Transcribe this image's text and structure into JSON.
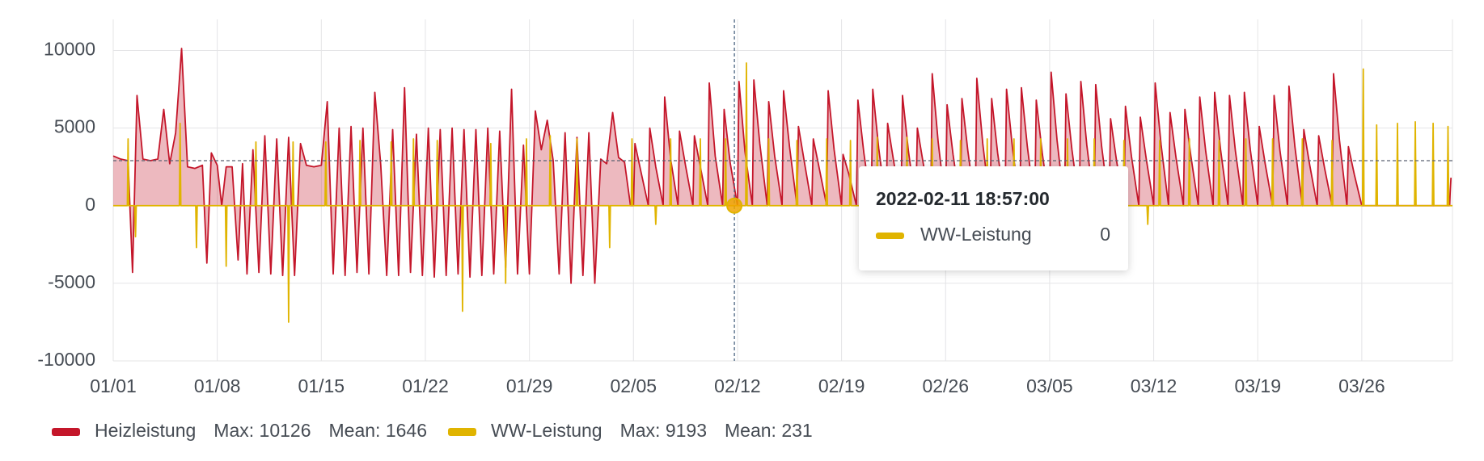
{
  "chart_data": {
    "type": "line",
    "xlim": [
      0,
      90.1
    ],
    "ylim": [
      -10000,
      12000
    ],
    "yticks": [
      -10000,
      -5000,
      0,
      5000,
      10000
    ],
    "xticks": [
      {
        "value": 0,
        "label": "01/01"
      },
      {
        "value": 7,
        "label": "01/08"
      },
      {
        "value": 14,
        "label": "01/15"
      },
      {
        "value": 21,
        "label": "01/22"
      },
      {
        "value": 28,
        "label": "01/29"
      },
      {
        "value": 35,
        "label": "02/05"
      },
      {
        "value": 42,
        "label": "02/12"
      },
      {
        "value": 49,
        "label": "02/19"
      },
      {
        "value": 56,
        "label": "02/26"
      },
      {
        "value": 63,
        "label": "03/05"
      },
      {
        "value": 70,
        "label": "03/12"
      },
      {
        "value": 77,
        "label": "03/19"
      },
      {
        "value": 84,
        "label": "03/26"
      }
    ],
    "grid": true,
    "series": [
      {
        "name": "Heizleistung",
        "color": "#c4162a",
        "fill": true,
        "legend_stats": [
          "Max: 10126",
          "Mean: 1646"
        ],
        "x": [
          0,
          0.5,
          1,
          1.3,
          1.6,
          2,
          2.5,
          3,
          3.4,
          3.8,
          4.2,
          4.6,
          5,
          5.5,
          6,
          6.3,
          6.6,
          7,
          7.3,
          7.6,
          8,
          8.4,
          8.7,
          9,
          9.4,
          9.8,
          10.2,
          10.6,
          11,
          11.4,
          11.8,
          12.2,
          12.6,
          13,
          13.5,
          14,
          14.4,
          14.8,
          15.2,
          15.6,
          16,
          16.4,
          16.8,
          17.2,
          17.6,
          18,
          18.4,
          18.8,
          19.2,
          19.6,
          20,
          20.4,
          20.8,
          21.2,
          21.6,
          22,
          22.4,
          22.8,
          23.2,
          23.6,
          24,
          24.4,
          24.8,
          25.2,
          25.6,
          26,
          26.4,
          26.8,
          27.2,
          27.6,
          28,
          28.4,
          28.8,
          29.2,
          29.6,
          30,
          30.4,
          30.8,
          31.2,
          31.6,
          32,
          32.4,
          32.8,
          33.2,
          33.6,
          34,
          34.4,
          34.8,
          35,
          35.1,
          35.5,
          36,
          36.1,
          36.5,
          37,
          37.1,
          37.5,
          38,
          38.1,
          38.5,
          39,
          39.1,
          39.5,
          40,
          40.1,
          40.5,
          41,
          41.1,
          41.5,
          42,
          42.1,
          42.5,
          43,
          43.1,
          43.5,
          44,
          44.1,
          44.5,
          45,
          45.1,
          45.5,
          46,
          46.1,
          46.5,
          47,
          47.1,
          47.5,
          48,
          48.1,
          48.5,
          49,
          49.1,
          49.5,
          50,
          50.1,
          50.5,
          51,
          51.1,
          51.5,
          52,
          52.1,
          52.5,
          53,
          53.1,
          53.5,
          54,
          54.1,
          54.5,
          55,
          55.1,
          55.5,
          56,
          56.1,
          56.5,
          57,
          57.1,
          57.5,
          58,
          58.1,
          58.5,
          59,
          59.1,
          59.5,
          60,
          60.1,
          60.5,
          61,
          61.1,
          61.5,
          62,
          62.1,
          62.5,
          63,
          63.1,
          63.5,
          64,
          64.1,
          64.5,
          65,
          65.1,
          65.5,
          66,
          66.1,
          66.5,
          67,
          67.1,
          67.5,
          68,
          68.1,
          68.5,
          69,
          69.1,
          69.5,
          70,
          70.1,
          70.5,
          71,
          71.1,
          71.5,
          72,
          72.1,
          72.5,
          73,
          73.1,
          73.5,
          74,
          74.1,
          74.5,
          75,
          75.1,
          75.5,
          76,
          76.1,
          76.5,
          77,
          77.1,
          77.5,
          78,
          78.1,
          78.5,
          79,
          79.1,
          79.5,
          80,
          80.1,
          80.5,
          81,
          81.1,
          81.5,
          82,
          82.1,
          82.5,
          83,
          83.1,
          83.5,
          84,
          89.9,
          90
        ],
        "values": [
          3200,
          3000,
          2900,
          -4300,
          7100,
          3000,
          2900,
          3000,
          6200,
          2700,
          4700,
          10126,
          2500,
          2400,
          2600,
          -3700,
          3400,
          2600,
          0,
          2500,
          2500,
          -3500,
          2700,
          -4400,
          3600,
          -4300,
          4500,
          -4400,
          4300,
          -4500,
          4400,
          -4500,
          4000,
          2600,
          2500,
          2600,
          6700,
          -4400,
          5000,
          -4500,
          5100,
          -4300,
          5000,
          -4400,
          7300,
          2600,
          -4500,
          4900,
          -4500,
          7600,
          -4300,
          4600,
          -4500,
          5000,
          -4600,
          4900,
          -4500,
          5000,
          -4400,
          4900,
          -4600,
          4900,
          -4500,
          5000,
          -4400,
          4800,
          -4000,
          7500,
          -4400,
          3900,
          -4400,
          6100,
          3600,
          5500,
          2900,
          -4400,
          4700,
          -5000,
          4400,
          -4500,
          4700,
          -5000,
          3000,
          2700,
          6000,
          3100,
          2800,
          0,
          0,
          4000,
          2200,
          0,
          5000,
          2500,
          0,
          7000,
          3000,
          0,
          4800,
          2600,
          0,
          4500,
          2500,
          0,
          7900,
          3200,
          0,
          6200,
          2800,
          0,
          8000,
          3500,
          0,
          8100,
          4000,
          0,
          6700,
          3200,
          0,
          7400,
          3800,
          0,
          5100,
          2800,
          0,
          4300,
          2400,
          0,
          7400,
          3600,
          0,
          3300,
          2000,
          0,
          6800,
          3400,
          0,
          7500,
          3700,
          0,
          5300,
          2900,
          0,
          7100,
          3500,
          0,
          5000,
          2700,
          0,
          8500,
          4100,
          0,
          6500,
          3300,
          0,
          6900,
          3500,
          0,
          8200,
          4000,
          0,
          6900,
          3400,
          0,
          7500,
          3700,
          0,
          7600,
          3800,
          0,
          6800,
          3400,
          0,
          8600,
          4200,
          0,
          7200,
          3600,
          0,
          8000,
          3900,
          0,
          7800,
          3800,
          0,
          5600,
          2900,
          0,
          6400,
          3200,
          0,
          5700,
          3000,
          0,
          7900,
          3900,
          0,
          6000,
          3100,
          0,
          6200,
          3200,
          0,
          7000,
          3500,
          0,
          7300,
          3600,
          0,
          7100,
          3500,
          0,
          7300,
          3600,
          0,
          5100,
          2700,
          0,
          7100,
          3500,
          0,
          7700,
          3800,
          0,
          4900,
          2600,
          0,
          4500,
          2400,
          0,
          8500,
          4200,
          0,
          3800,
          2000,
          0,
          0,
          1800
        ]
      },
      {
        "name": "WW-Leistung",
        "color": "#e0b400",
        "fill": false,
        "legend_stats": [
          "Max: 9193",
          "Mean: 231"
        ],
        "x": [
          0,
          0.95,
          1,
          1.05,
          1.45,
          1.5,
          1.55,
          4.45,
          4.5,
          4.55,
          5.55,
          5.6,
          5.65,
          7.55,
          7.6,
          7.65,
          9.55,
          9.6,
          9.65,
          11.75,
          11.8,
          11.85,
          12.05,
          12.1,
          12.15,
          14.25,
          14.3,
          14.35,
          16.55,
          16.6,
          16.65,
          18.65,
          18.7,
          18.75,
          20.15,
          20.2,
          20.25,
          21.75,
          21.8,
          21.85,
          23.45,
          23.5,
          23.55,
          25.35,
          25.4,
          25.45,
          26.35,
          26.4,
          26.45,
          27.75,
          27.8,
          27.85,
          29.35,
          29.4,
          29.45,
          31.15,
          31.2,
          31.25,
          33.35,
          33.4,
          33.45,
          34.85,
          34.9,
          34.95,
          36.45,
          36.5,
          36.55,
          37.45,
          37.5,
          37.55,
          39.45,
          39.5,
          39.55,
          41.15,
          41.2,
          41.25,
          42.55,
          42.6,
          42.65,
          44.05,
          44.1,
          44.15,
          45.95,
          46,
          46.05,
          47.95,
          48,
          48.05,
          49.55,
          49.6,
          49.65,
          51.35,
          51.4,
          51.45,
          53.35,
          53.4,
          53.45,
          55.05,
          55.1,
          55.15,
          56.95,
          57,
          57.05,
          58.75,
          58.8,
          58.85,
          60.55,
          60.6,
          60.65,
          62.35,
          62.4,
          62.45,
          64.15,
          64.2,
          64.25,
          65.95,
          66,
          66.05,
          67.95,
          68,
          68.05,
          69.55,
          69.6,
          69.65,
          70.35,
          70.4,
          70.45,
          72.35,
          72.4,
          72.45,
          74.35,
          74.4,
          74.45,
          76.15,
          76.2,
          76.25,
          77.95,
          78,
          78.05,
          79.95,
          80,
          80.05,
          81.95,
          82,
          82.05,
          84.05,
          84.1,
          84.15,
          84.95,
          85,
          85.05,
          86.35,
          86.4,
          86.45,
          87.55,
          87.6,
          87.65,
          88.75,
          88.8,
          88.85,
          89.75,
          89.8,
          89.85,
          90.1
        ],
        "values": [
          0,
          0,
          4300,
          0,
          0,
          -2000,
          0,
          0,
          5300,
          0,
          0,
          -2700,
          0,
          0,
          -3900,
          0,
          0,
          4100,
          0,
          0,
          -7500,
          0,
          0,
          4100,
          0,
          0,
          4100,
          0,
          0,
          4200,
          0,
          0,
          4100,
          0,
          0,
          4300,
          0,
          0,
          4200,
          0,
          0,
          -6800,
          0,
          0,
          4000,
          0,
          0,
          -5000,
          0,
          0,
          4300,
          0,
          0,
          4500,
          0,
          0,
          4300,
          0,
          0,
          -2700,
          0,
          0,
          4300,
          0,
          0,
          -1200,
          0,
          0,
          4300,
          0,
          0,
          4300,
          0,
          0,
          4300,
          0,
          0,
          9193,
          0,
          0,
          4300,
          0,
          0,
          4200,
          0,
          0,
          4300,
          0,
          0,
          4200,
          0,
          0,
          4400,
          0,
          0,
          4400,
          0,
          0,
          4300,
          0,
          0,
          4200,
          0,
          0,
          4300,
          0,
          0,
          4300,
          0,
          0,
          4300,
          0,
          0,
          4300,
          0,
          0,
          4300,
          0,
          0,
          4200,
          0,
          0,
          -1200,
          0,
          0,
          4200,
          0,
          0,
          4300,
          0,
          0,
          4200,
          0,
          0,
          4300,
          0,
          0,
          4300,
          0,
          0,
          4300,
          0,
          0,
          4200,
          0,
          0,
          8800,
          0,
          0,
          5200,
          0,
          0,
          5300,
          0,
          0,
          5400,
          0,
          0,
          5300,
          0,
          0,
          5100,
          0,
          0
        ]
      }
    ],
    "crosshair": {
      "x": 41.79,
      "y": 2900
    },
    "tooltip": {
      "time": "2022-02-11 18:57:00",
      "series": "WW-Leistung",
      "value": 0,
      "x": 41.79
    }
  }
}
